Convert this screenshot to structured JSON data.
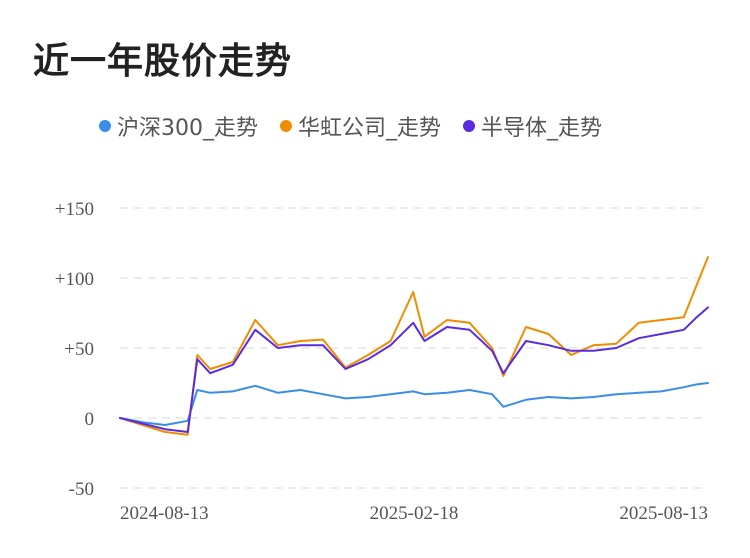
{
  "title": "近一年股价走势",
  "chart_data": {
    "type": "line",
    "title": "近一年股价走势",
    "xlabel": "",
    "ylabel": "",
    "x_ticks": [
      "2024-08-13",
      "2025-02-18",
      "2025-08-13"
    ],
    "y_ticks": [
      {
        "value": 150,
        "label": "+150"
      },
      {
        "value": 100,
        "label": "+100"
      },
      {
        "value": 50,
        "label": "+50"
      },
      {
        "value": 0,
        "label": "0"
      },
      {
        "value": -50,
        "label": "-50"
      }
    ],
    "ylim": [
      -50,
      150
    ],
    "grid": true,
    "legend_position": "top",
    "x": [
      "2024-08-13",
      "2024-08-27",
      "2024-09-10",
      "2024-09-24",
      "2024-09-30",
      "2024-10-08",
      "2024-10-22",
      "2024-11-05",
      "2024-11-19",
      "2024-12-03",
      "2024-12-17",
      "2024-12-31",
      "2025-01-14",
      "2025-01-28",
      "2025-02-11",
      "2025-02-18",
      "2025-03-04",
      "2025-03-18",
      "2025-04-01",
      "2025-04-08",
      "2025-04-22",
      "2025-05-06",
      "2025-05-20",
      "2025-06-03",
      "2025-06-17",
      "2025-07-01",
      "2025-07-15",
      "2025-07-29",
      "2025-08-06",
      "2025-08-13"
    ],
    "series": [
      {
        "name": "沪深300_走势",
        "color": "#3a8ee6",
        "values": [
          0,
          -3,
          -5,
          -2,
          20,
          18,
          19,
          23,
          18,
          20,
          17,
          14,
          15,
          17,
          19,
          17,
          18,
          20,
          17,
          8,
          13,
          15,
          14,
          15,
          17,
          18,
          19,
          22,
          24,
          25
        ]
      },
      {
        "name": "华虹公司_走势",
        "color": "#f08c00",
        "values": [
          0,
          -5,
          -10,
          -12,
          45,
          35,
          40,
          70,
          52,
          55,
          56,
          36,
          45,
          55,
          90,
          58,
          70,
          68,
          50,
          30,
          65,
          60,
          45,
          52,
          53,
          68,
          70,
          72,
          95,
          115
        ]
      },
      {
        "name": "半导体_走势",
        "color": "#5a2be0",
        "values": [
          0,
          -4,
          -8,
          -10,
          42,
          32,
          38,
          63,
          50,
          52,
          52,
          35,
          42,
          52,
          68,
          55,
          65,
          63,
          48,
          32,
          55,
          52,
          48,
          48,
          50,
          57,
          60,
          63,
          72,
          79
        ]
      }
    ]
  }
}
